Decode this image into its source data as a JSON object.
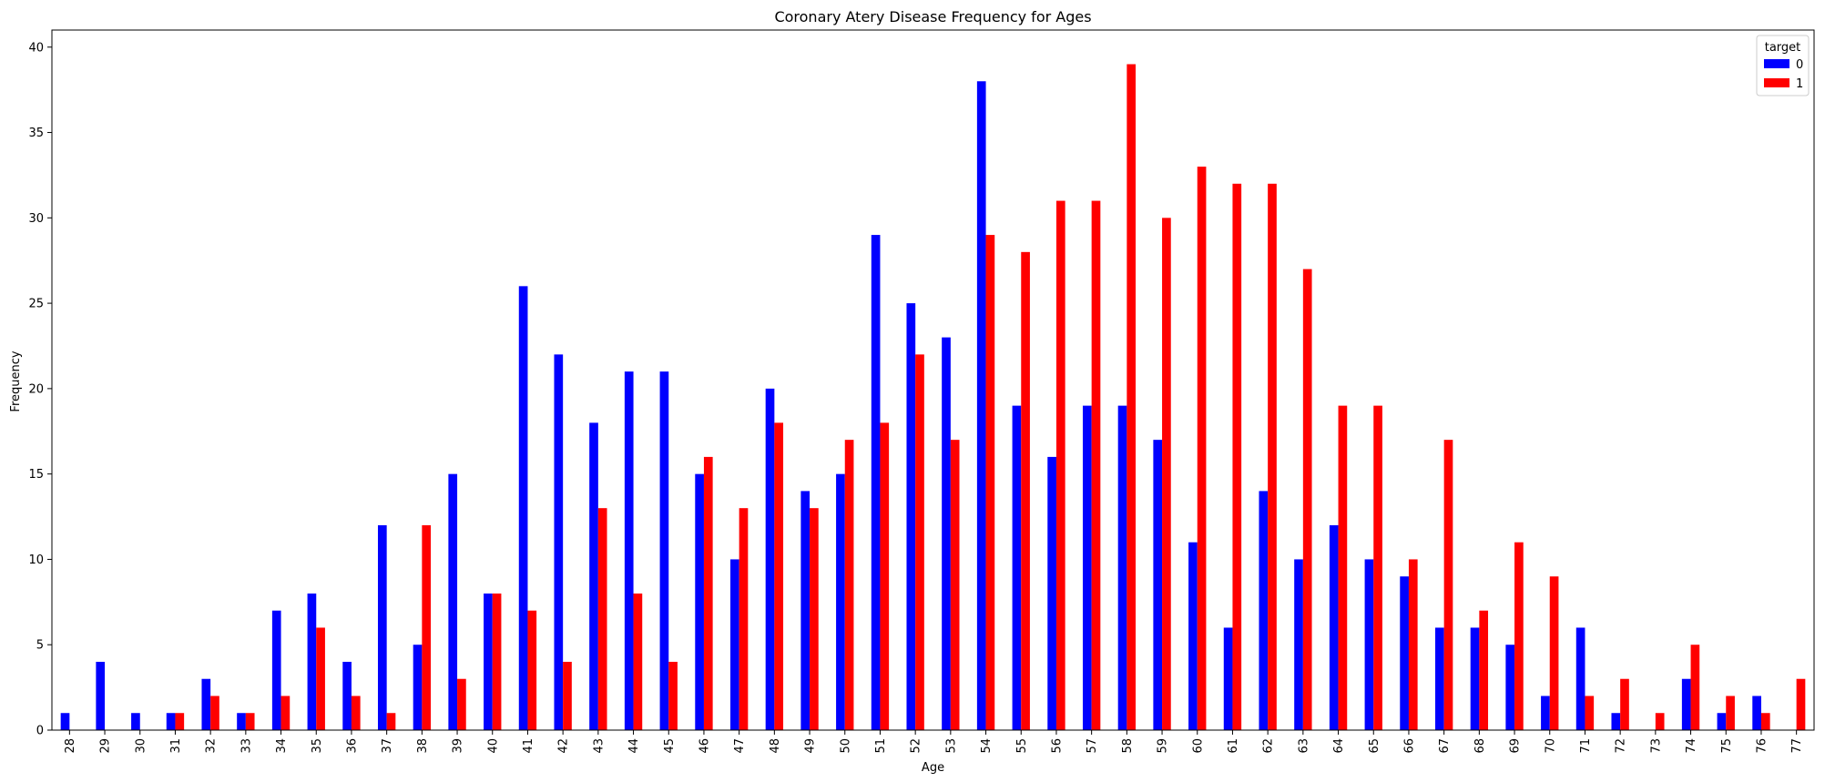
{
  "chart_data": {
    "type": "bar",
    "title": "Coronary Atery Disease Frequency for Ages",
    "xlabel": "Age",
    "ylabel": "Frequency",
    "ylim": [
      0,
      41
    ],
    "yticks": [
      0,
      5,
      10,
      15,
      20,
      25,
      30,
      35,
      40
    ],
    "grid": false,
    "legend": {
      "title": "target",
      "placement": "top-right"
    },
    "categories": [
      "28",
      "29",
      "30",
      "31",
      "32",
      "33",
      "34",
      "35",
      "36",
      "37",
      "38",
      "39",
      "40",
      "41",
      "42",
      "43",
      "44",
      "45",
      "46",
      "47",
      "48",
      "49",
      "50",
      "51",
      "52",
      "53",
      "54",
      "55",
      "56",
      "57",
      "58",
      "59",
      "60",
      "61",
      "62",
      "63",
      "64",
      "65",
      "66",
      "67",
      "68",
      "69",
      "70",
      "71",
      "72",
      "73",
      "74",
      "75",
      "76",
      "77"
    ],
    "series": [
      {
        "name": "0",
        "color": "#0000ff",
        "values": [
          1,
          4,
          1,
          1,
          3,
          1,
          7,
          8,
          4,
          12,
          5,
          15,
          8,
          26,
          22,
          18,
          21,
          21,
          15,
          10,
          20,
          14,
          15,
          29,
          25,
          23,
          38,
          19,
          16,
          19,
          19,
          17,
          11,
          6,
          14,
          10,
          12,
          10,
          9,
          6,
          6,
          5,
          2,
          6,
          1,
          0,
          3,
          1,
          2,
          0
        ]
      },
      {
        "name": "1",
        "color": "#ff0000",
        "values": [
          0,
          0,
          0,
          1,
          2,
          1,
          2,
          6,
          2,
          1,
          12,
          3,
          8,
          7,
          4,
          13,
          8,
          4,
          16,
          13,
          18,
          13,
          17,
          18,
          22,
          17,
          29,
          28,
          31,
          31,
          39,
          30,
          33,
          32,
          32,
          27,
          19,
          19,
          10,
          17,
          7,
          11,
          9,
          2,
          3,
          1,
          5,
          2,
          1,
          3
        ]
      }
    ]
  }
}
